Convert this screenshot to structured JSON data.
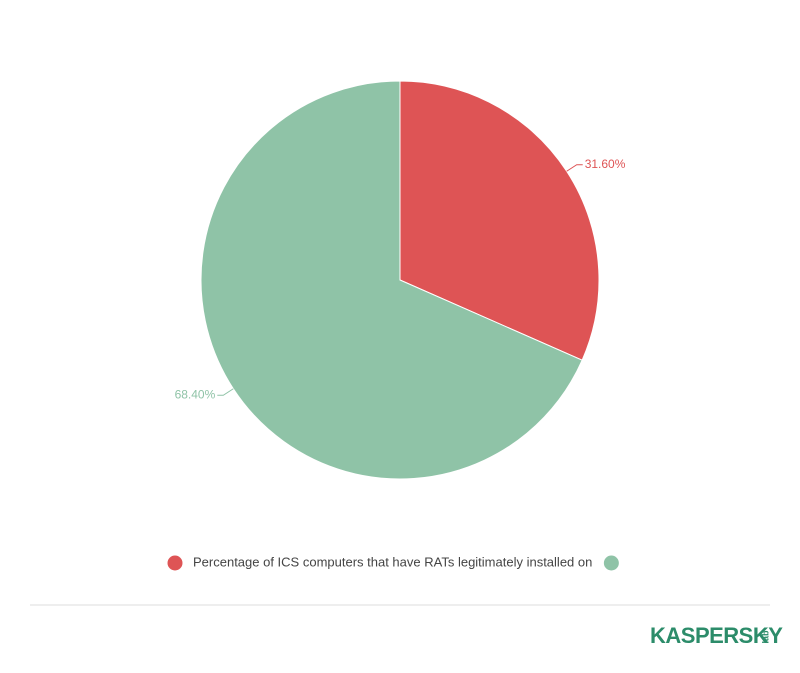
{
  "chart_data": {
    "type": "pie",
    "categories": [
      "Percentage of ICS computers that have RATs legitimately installed on",
      null
    ],
    "values": [
      31.6,
      68.4
    ],
    "value_labels": [
      "31.60%",
      "68.40%"
    ],
    "colors": [
      "#de5455",
      "#8fc3a7"
    ],
    "legend": "bottom"
  },
  "footer": {
    "logo": "KASPERSKY",
    "logo_sub": "lab"
  }
}
